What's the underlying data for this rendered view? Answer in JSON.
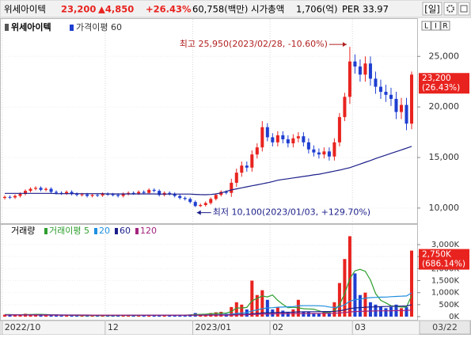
{
  "header": {
    "name": "위세아이텍",
    "price": "23,200",
    "change": "▲4,850",
    "change_pct": "+26.43%",
    "turnover": "60,758(백만)",
    "market_cap_label": "시가총액",
    "market_cap": "1,706(억)",
    "per_label": "PER",
    "per": "33.97",
    "period": "[일]"
  },
  "toolbar": [
    "L",
    "I",
    "R"
  ],
  "date_box": "03/22",
  "chart_data": [
    {
      "type": "candlestick",
      "legend_title": "위세아이텍",
      "up_color": "#e8231f",
      "down_color": "#1f3fd1",
      "open": [
        11000,
        11100,
        11050,
        11200,
        11400,
        11700,
        11900,
        12000,
        11800,
        11900,
        11600,
        11500,
        11450,
        11600,
        11400,
        11300,
        11350,
        11200,
        11300,
        11250,
        11400,
        11350,
        11300,
        11200,
        11400,
        11500,
        11450,
        11600,
        11500,
        11800,
        11700,
        11300,
        11500,
        11400,
        11200,
        11000,
        10900,
        10600,
        10200,
        10300,
        10500,
        10900,
        11300,
        11600,
        11500,
        12500,
        13500,
        14200,
        14000,
        15300,
        16000,
        18000,
        17000,
        16500,
        17200,
        16800,
        16400,
        16900,
        17100,
        16500,
        15800,
        15500,
        15300,
        15600,
        15100,
        16500,
        19000,
        21000,
        24500,
        24000,
        23200,
        24300,
        22800,
        22000,
        21500,
        21200,
        20800,
        19500,
        20200,
        18350
      ],
      "high": [
        11250,
        11250,
        11350,
        11550,
        11850,
        12050,
        12150,
        12150,
        12050,
        12050,
        11750,
        11650,
        11750,
        11750,
        11550,
        11500,
        11500,
        11450,
        11450,
        11550,
        11550,
        11500,
        11450,
        11550,
        11650,
        11650,
        11750,
        11750,
        11950,
        11950,
        11850,
        11650,
        11650,
        11550,
        11350,
        11150,
        11050,
        10750,
        10450,
        10650,
        11050,
        11450,
        11750,
        11750,
        12900,
        13900,
        14600,
        14600,
        15700,
        16400,
        18600,
        18400,
        17400,
        17600,
        17600,
        17200,
        17300,
        17500,
        17500,
        16900,
        16200,
        15900,
        16000,
        16000,
        16900,
        19400,
        21400,
        25950,
        25200,
        24700,
        25000,
        25000,
        23500,
        22700,
        22200,
        21900,
        21500,
        20900,
        20900,
        23500
      ],
      "low": [
        10850,
        10900,
        10900,
        11050,
        11250,
        11550,
        11750,
        11650,
        11650,
        11450,
        11350,
        11300,
        11300,
        11250,
        11150,
        11150,
        11050,
        11050,
        11100,
        11100,
        11200,
        11150,
        11050,
        11050,
        11250,
        11300,
        11300,
        11350,
        11350,
        11550,
        11150,
        11150,
        11250,
        11050,
        10850,
        10750,
        10450,
        10100,
        10100,
        10150,
        10350,
        10750,
        11150,
        11350,
        11100,
        12100,
        13100,
        13600,
        13600,
        14900,
        15600,
        16600,
        16100,
        16100,
        16400,
        16000,
        16000,
        16500,
        16100,
        15400,
        15100,
        14900,
        14900,
        14700,
        14700,
        16100,
        18600,
        20300,
        23300,
        22500,
        22500,
        22100,
        21300,
        20800,
        20500,
        20100,
        18800,
        18800,
        17700,
        17800
      ],
      "close": [
        11100,
        11050,
        11200,
        11400,
        11700,
        11900,
        12000,
        11800,
        11900,
        11600,
        11500,
        11450,
        11600,
        11400,
        11300,
        11350,
        11200,
        11300,
        11250,
        11400,
        11350,
        11300,
        11200,
        11400,
        11500,
        11450,
        11600,
        11500,
        11800,
        11700,
        11300,
        11500,
        11400,
        11200,
        11000,
        10900,
        10600,
        10200,
        10300,
        10500,
        10900,
        11300,
        11600,
        11500,
        12500,
        13500,
        14200,
        14000,
        15300,
        16000,
        18000,
        17000,
        16500,
        17200,
        16800,
        16400,
        16900,
        17100,
        16500,
        15800,
        15500,
        15300,
        15600,
        15100,
        16500,
        19000,
        21000,
        24500,
        24000,
        23200,
        24300,
        22800,
        22000,
        21500,
        21200,
        20800,
        19500,
        20200,
        18350,
        23200
      ],
      "series": [
        {
          "name": "가격이평 60",
          "color": "#1c1f8a",
          "values": [
            11450,
            11450,
            11450,
            11450,
            11450,
            11450,
            11450,
            11450,
            11450,
            11450,
            11420,
            11420,
            11420,
            11420,
            11420,
            11420,
            11420,
            11420,
            11420,
            11420,
            11400,
            11400,
            11400,
            11400,
            11400,
            11400,
            11400,
            11400,
            11400,
            11400,
            11380,
            11380,
            11380,
            11380,
            11380,
            11380,
            11380,
            11350,
            11330,
            11320,
            11340,
            11400,
            11500,
            11650,
            11800,
            11900,
            12000,
            12100,
            12200,
            12300,
            12400,
            12500,
            12620,
            12750,
            12830,
            12900,
            12980,
            13050,
            13130,
            13200,
            13280,
            13350,
            13450,
            13550,
            13650,
            13750,
            13880,
            14000,
            14170,
            14350,
            14530,
            14700,
            14900,
            15070,
            15240,
            15410,
            15580,
            15750,
            15920,
            16100
          ]
        }
      ],
      "ylim": [
        8500,
        28700
      ],
      "yticks": [
        {
          "value": 10000,
          "label": "10,000"
        },
        {
          "value": 15000,
          "label": "15,000"
        },
        {
          "value": 20000,
          "label": "20,000"
        },
        {
          "value": 25000,
          "label": "25,000"
        }
      ],
      "annotations": {
        "high": "최고 25,950(2023/02/28, -10.60%)",
        "low": "최저 10,100(2023/01/03, +129.70%)"
      },
      "last_label": [
        "23,200",
        "(26.43%)"
      ]
    },
    {
      "type": "bar",
      "name": "거래량",
      "categories": [
        "2022/10",
        null,
        null,
        null,
        null,
        null,
        null,
        null,
        null,
        null,
        null,
        null,
        null,
        null,
        null,
        null,
        null,
        null,
        null,
        null,
        "12",
        null,
        null,
        null,
        null,
        null,
        null,
        null,
        null,
        null,
        null,
        null,
        null,
        null,
        null,
        null,
        null,
        "2023/01",
        null,
        null,
        null,
        null,
        null,
        null,
        null,
        null,
        null,
        null,
        null,
        null,
        null,
        null,
        "02",
        null,
        null,
        null,
        null,
        null,
        null,
        null,
        null,
        null,
        null,
        null,
        null,
        null,
        null,
        null,
        "03",
        null,
        null,
        null,
        null,
        null,
        null,
        null,
        null,
        null,
        null,
        null
      ],
      "values": [
        80000,
        60000,
        70000,
        90000,
        120000,
        100000,
        90000,
        70000,
        60000,
        70000,
        50000,
        40000,
        60000,
        50000,
        40000,
        40000,
        50000,
        40000,
        40000,
        60000,
        50000,
        40000,
        50000,
        60000,
        50000,
        40000,
        60000,
        50000,
        70000,
        60000,
        80000,
        60000,
        50000,
        60000,
        70000,
        60000,
        90000,
        150000,
        100000,
        90000,
        150000,
        180000,
        200000,
        120000,
        400000,
        600000,
        500000,
        300000,
        1500000,
        900000,
        1100000,
        700000,
        300000,
        400000,
        250000,
        200000,
        300000,
        700000,
        200000,
        200000,
        150000,
        150000,
        200000,
        150000,
        600000,
        1400000,
        2400000,
        3350000,
        1800000,
        900000,
        1000000,
        600000,
        500000,
        400000,
        350000,
        400000,
        500000,
        350000,
        400000,
        2750000
      ],
      "series": [
        {
          "name": "거래이평 5",
          "color": "#2f9e2f",
          "values": [
            90000,
            85000,
            80000,
            80000,
            84000,
            88000,
            94000,
            94000,
            88000,
            78000,
            68000,
            58000,
            56000,
            54000,
            48000,
            46000,
            46000,
            44000,
            42000,
            46000,
            46000,
            46000,
            48000,
            50000,
            50000,
            48000,
            50000,
            52000,
            54000,
            56000,
            64000,
            64000,
            64000,
            62000,
            64000,
            62000,
            68000,
            86000,
            94000,
            102000,
            118000,
            134000,
            144000,
            148000,
            210000,
            360000,
            364000,
            384000,
            660000,
            760000,
            860000,
            820000,
            900000,
            680000,
            510000,
            370000,
            390000,
            370000,
            330000,
            320000,
            310000,
            240000,
            180000,
            170000,
            250000,
            500000,
            950000,
            1580000,
            1910000,
            1970000,
            1890000,
            1530000,
            960000,
            680000,
            570000,
            450000,
            430000,
            400000,
            400000,
            880000
          ]
        },
        {
          "name": "20",
          "color": "#1e8fe0",
          "values": [
            76000,
            75000,
            75000,
            74000,
            74000,
            73000,
            72000,
            72000,
            71000,
            70000,
            69000,
            68000,
            67000,
            66000,
            65000,
            64000,
            63000,
            62000,
            61000,
            60000,
            59000,
            58000,
            58000,
            57000,
            56000,
            56000,
            55000,
            55000,
            55000,
            55000,
            56000,
            56000,
            56000,
            57000,
            57000,
            58000,
            60000,
            64000,
            66000,
            68000,
            72000,
            78000,
            84000,
            88000,
            106000,
            132000,
            154000,
            166000,
            238000,
            280000,
            330000,
            362000,
            374000,
            392000,
            400000,
            408000,
            420000,
            450000,
            456000,
            456000,
            454000,
            450000,
            440000,
            402000,
            380000,
            405000,
            495000,
            640000,
            705000,
            725000,
            770000,
            790000,
            800000,
            810000,
            815000,
            830000,
            840000,
            850000,
            860000,
            990000
          ]
        },
        {
          "name": "60",
          "color": "#1c1f8a",
          "values": [
            72000,
            72000,
            71000,
            71000,
            70000,
            70000,
            70000,
            69000,
            69000,
            68000,
            68000,
            67000,
            67000,
            66000,
            66000,
            65000,
            65000,
            64000,
            64000,
            64000,
            63000,
            63000,
            63000,
            62000,
            62000,
            62000,
            62000,
            61000,
            61000,
            61000,
            61000,
            61000,
            61000,
            61000,
            61000,
            61000,
            62000,
            63000,
            64000,
            65000,
            66000,
            68000,
            70000,
            71000,
            77000,
            86000,
            94000,
            98000,
            122000,
            136000,
            153000,
            164000,
            168000,
            174000,
            178000,
            181000,
            186000,
            197000,
            200000,
            203000,
            205000,
            207000,
            210000,
            212000,
            221000,
            243000,
            281000,
            335000,
            363000,
            377000,
            393000,
            402000,
            410000,
            416000,
            421000,
            427000,
            434000,
            439000,
            445000,
            490000
          ]
        },
        {
          "name": "120",
          "color": "#a3237e",
          "values": [
            66000,
            66000,
            66000,
            65000,
            65000,
            65000,
            65000,
            64000,
            64000,
            64000,
            64000,
            63000,
            63000,
            63000,
            63000,
            62000,
            62000,
            62000,
            62000,
            61000,
            61000,
            61000,
            61000,
            61000,
            60000,
            60000,
            60000,
            60000,
            60000,
            60000,
            60000,
            60000,
            60000,
            60000,
            60000,
            60000,
            60000,
            61000,
            61000,
            62000,
            62000,
            63000,
            64000,
            64000,
            67000,
            72000,
            76000,
            78000,
            90000,
            97000,
            106000,
            111000,
            114000,
            117000,
            119000,
            120000,
            123000,
            128000,
            130000,
            131000,
            132000,
            133000,
            135000,
            136000,
            140000,
            151000,
            170000,
            197000,
            212000,
            219000,
            227000,
            232000,
            236000,
            239000,
            242000,
            245000,
            249000,
            252000,
            255000,
            278000
          ]
        }
      ],
      "ylim": [
        -165000,
        3825000
      ],
      "yticks": [
        {
          "value": 0,
          "label": "0K"
        },
        {
          "value": 500000,
          "label": "500K"
        },
        {
          "value": 1000000,
          "label": "1,000K"
        },
        {
          "value": 1500000,
          "label": "1,500K"
        },
        {
          "value": 2000000,
          "label": "2,000K"
        },
        {
          "value": 2500000,
          "label": "2,500K"
        },
        {
          "value": 3000000,
          "label": "3,000K"
        }
      ],
      "last_label": [
        "2,750K",
        "(686.14%)"
      ]
    }
  ]
}
